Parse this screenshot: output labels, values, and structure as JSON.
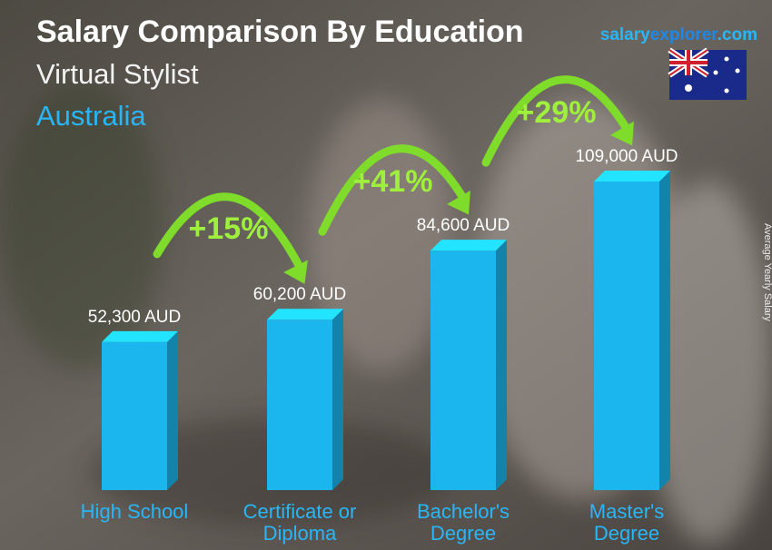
{
  "chart_data": {
    "type": "bar",
    "title": "Salary Comparison By Education",
    "subtitle": "Virtual Stylist",
    "country": "Australia",
    "brand": [
      "salary",
      "explorer",
      ".com"
    ],
    "y_axis_label": "Average Yearly Salary",
    "categories": [
      "High School",
      "Certificate or Diploma",
      "Bachelor's Degree",
      "Master's Degree"
    ],
    "values": [
      52300,
      60200,
      84600,
      109000
    ],
    "value_labels": [
      "52,300 AUD",
      "60,200 AUD",
      "84,600 AUD",
      "109,000 AUD"
    ],
    "changes": [
      "+15%",
      "+41%",
      "+29%"
    ],
    "color": "#1cb6ee"
  }
}
